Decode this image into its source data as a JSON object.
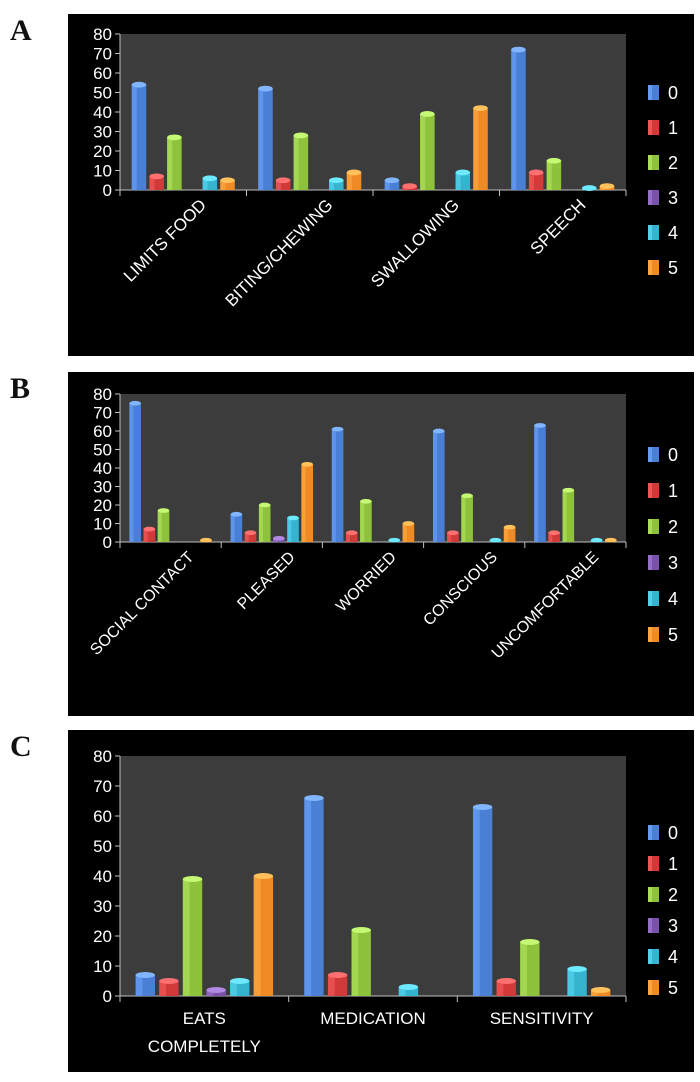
{
  "panels": [
    {
      "letter": "A"
    },
    {
      "letter": "B"
    },
    {
      "letter": "C"
    }
  ],
  "chart_data": [
    {
      "type": "bar",
      "panel": "A",
      "categories": [
        "LIMITS FOOD",
        "BITING/CHEWING",
        "SWALLOWING",
        "SPEECH"
      ],
      "series": [
        {
          "name": "0",
          "values": [
            54,
            52,
            5,
            72
          ]
        },
        {
          "name": "1",
          "values": [
            7,
            5,
            2,
            9
          ]
        },
        {
          "name": "2",
          "values": [
            27,
            28,
            39,
            15
          ]
        },
        {
          "name": "3",
          "values": [
            0,
            0,
            0,
            0
          ]
        },
        {
          "name": "4",
          "values": [
            6,
            5,
            9,
            1
          ]
        },
        {
          "name": "5",
          "values": [
            5,
            9,
            42,
            2
          ]
        }
      ],
      "yticks": [
        0,
        10,
        20,
        30,
        40,
        50,
        60,
        70,
        80
      ],
      "ylim": [
        0,
        80
      ],
      "grid": false,
      "legend": "right",
      "xlabel_style": "rotated"
    },
    {
      "type": "bar",
      "panel": "B",
      "categories": [
        "SOCIAL CONTACT",
        "PLEASED",
        "WORRIED",
        "CONSCIOUS",
        "UNCOMFORTABLE"
      ],
      "series": [
        {
          "name": "0",
          "values": [
            75,
            15,
            61,
            60,
            63
          ]
        },
        {
          "name": "1",
          "values": [
            7,
            5,
            5,
            5,
            5
          ]
        },
        {
          "name": "2",
          "values": [
            17,
            20,
            22,
            25,
            28
          ]
        },
        {
          "name": "3",
          "values": [
            0,
            2,
            0,
            0,
            0
          ]
        },
        {
          "name": "4",
          "values": [
            0,
            13,
            1,
            1,
            1
          ]
        },
        {
          "name": "5",
          "values": [
            1,
            42,
            10,
            8,
            1
          ]
        }
      ],
      "yticks": [
        0,
        10,
        20,
        30,
        40,
        50,
        60,
        70,
        80
      ],
      "ylim": [
        0,
        80
      ],
      "grid": false,
      "legend": "right",
      "xlabel_style": "rotated"
    },
    {
      "type": "bar",
      "panel": "C",
      "categories": [
        "EATS COMPLETELY",
        "MEDICATION",
        "SENSITIVITY"
      ],
      "series": [
        {
          "name": "0",
          "values": [
            7,
            66,
            63
          ]
        },
        {
          "name": "1",
          "values": [
            5,
            7,
            5
          ]
        },
        {
          "name": "2",
          "values": [
            39,
            22,
            18
          ]
        },
        {
          "name": "3",
          "values": [
            2,
            0,
            0
          ]
        },
        {
          "name": "4",
          "values": [
            5,
            3,
            9
          ]
        },
        {
          "name": "5",
          "values": [
            40,
            0,
            2
          ]
        }
      ],
      "yticks": [
        0,
        10,
        20,
        30,
        40,
        50,
        60,
        70,
        80
      ],
      "ylim": [
        0,
        80
      ],
      "grid": false,
      "legend": "right",
      "xlabel_style": "horizontal"
    }
  ],
  "colors": {
    "0": "#4a7fd6",
    "1": "#d23a3a",
    "2": "#8fc23c",
    "3": "#7b52ab",
    "4": "#36b3cf",
    "5": "#f08a24",
    "background": "#000000",
    "plot_area": "#3c3c3c",
    "text": "#ffffff"
  }
}
